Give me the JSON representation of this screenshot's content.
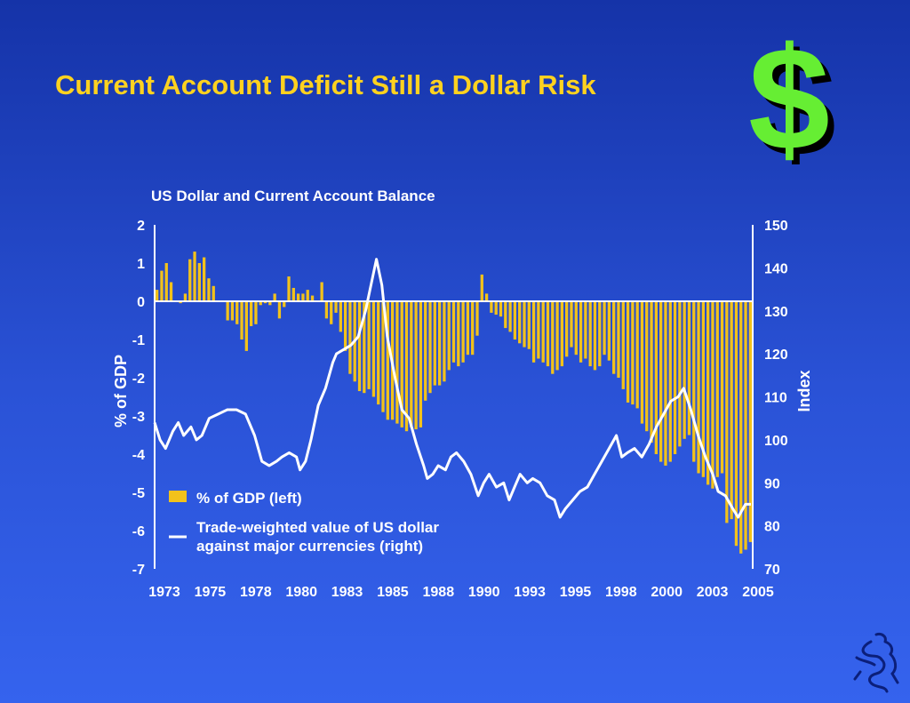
{
  "slide": {
    "title": "Current Account Deficit Still a Dollar Risk"
  },
  "colors": {
    "bars": "#f2c21b",
    "line": "#ffffff",
    "axis": "#ffffff",
    "title": "#ffd21f"
  },
  "chart_data": {
    "type": "bar",
    "title": "US Dollar and Current Account Balance",
    "ylabel": "% of GDP",
    "y2label": "Index",
    "ylim": [
      -7,
      2
    ],
    "y2lim": [
      70,
      150
    ],
    "yticks": [
      "2",
      "1",
      "0",
      "-1",
      "-2",
      "-3",
      "-4",
      "-5",
      "-6",
      "-7"
    ],
    "y2ticks": [
      "150",
      "140",
      "130",
      "120",
      "110",
      "100",
      "90",
      "80",
      "70"
    ],
    "xticks": [
      "1973",
      "1975",
      "1978",
      "1980",
      "1983",
      "1985",
      "1988",
      "1990",
      "1993",
      "1995",
      "1998",
      "2000",
      "2003",
      "2005"
    ],
    "legend": {
      "position": "bottom-left",
      "bar_label": "% of GDP (left)",
      "line_label_1": "Trade-weighted value of US dollar",
      "line_label_2": "against major currencies (right)"
    },
    "bars": {
      "name": "% of GDP (left)",
      "values": [
        0.3,
        0.8,
        1.0,
        0.5,
        0.0,
        -0.05,
        0.2,
        1.1,
        1.3,
        1.0,
        1.15,
        0.6,
        0.4,
        0.0,
        0.0,
        -0.5,
        -0.5,
        -0.6,
        -1.0,
        -1.3,
        -0.65,
        -0.6,
        -0.1,
        -0.05,
        -0.1,
        0.2,
        -0.45,
        -0.15,
        0.65,
        0.35,
        0.2,
        0.2,
        0.3,
        0.15,
        0.0,
        0.5,
        -0.45,
        -0.6,
        -0.3,
        -0.8,
        -1.3,
        -1.9,
        -2.1,
        -2.35,
        -2.4,
        -2.3,
        -2.5,
        -2.7,
        -2.9,
        -3.1,
        -3.1,
        -3.2,
        -3.3,
        -3.4,
        -3.3,
        -3.35,
        -3.3,
        -2.6,
        -2.4,
        -2.2,
        -2.2,
        -2.1,
        -1.8,
        -1.6,
        -1.7,
        -1.6,
        -1.4,
        -1.4,
        -0.9,
        0.7,
        0.2,
        -0.3,
        -0.35,
        -0.4,
        -0.7,
        -0.8,
        -1.0,
        -1.1,
        -1.2,
        -1.25,
        -1.6,
        -1.5,
        -1.6,
        -1.7,
        -1.9,
        -1.8,
        -1.7,
        -1.45,
        -1.2,
        -1.4,
        -1.6,
        -1.5,
        -1.7,
        -1.8,
        -1.7,
        -1.4,
        -1.55,
        -1.9,
        -2.0,
        -2.3,
        -2.65,
        -2.7,
        -2.8,
        -3.2,
        -3.4,
        -3.7,
        -4.0,
        -4.2,
        -4.3,
        -4.2,
        -4.0,
        -3.8,
        -3.6,
        -3.5,
        -4.2,
        -4.5,
        -4.6,
        -4.8,
        -4.9,
        -4.6,
        -4.5,
        -5.8,
        -5.7,
        -6.4,
        -6.6,
        -6.5,
        -6.3
      ]
    },
    "line": {
      "name": "Trade-weighted value of US dollar against major currencies (right)",
      "points": [
        [
          1973.0,
          104
        ],
        [
          1973.3,
          100
        ],
        [
          1973.6,
          98
        ],
        [
          1974.0,
          102
        ],
        [
          1974.3,
          104
        ],
        [
          1974.6,
          101
        ],
        [
          1975.0,
          103
        ],
        [
          1975.3,
          100
        ],
        [
          1975.6,
          101
        ],
        [
          1976.0,
          105
        ],
        [
          1976.5,
          106
        ],
        [
          1977.0,
          107
        ],
        [
          1977.5,
          107
        ],
        [
          1978.0,
          106
        ],
        [
          1978.5,
          101
        ],
        [
          1978.9,
          95
        ],
        [
          1979.3,
          94
        ],
        [
          1979.7,
          95
        ],
        [
          1980.0,
          96
        ],
        [
          1980.4,
          97
        ],
        [
          1980.8,
          96
        ],
        [
          1981.0,
          93
        ],
        [
          1981.3,
          95
        ],
        [
          1981.6,
          100
        ],
        [
          1982.0,
          108
        ],
        [
          1982.4,
          112
        ],
        [
          1982.8,
          118
        ],
        [
          1983.0,
          120
        ],
        [
          1983.4,
          121
        ],
        [
          1983.8,
          122
        ],
        [
          1984.2,
          124
        ],
        [
          1984.6,
          130
        ],
        [
          1985.0,
          138
        ],
        [
          1985.2,
          142
        ],
        [
          1985.5,
          136
        ],
        [
          1985.8,
          124
        ],
        [
          1986.2,
          115
        ],
        [
          1986.6,
          107
        ],
        [
          1987.0,
          105
        ],
        [
          1987.4,
          99
        ],
        [
          1987.8,
          94
        ],
        [
          1988.0,
          91
        ],
        [
          1988.3,
          92
        ],
        [
          1988.6,
          94
        ],
        [
          1989.0,
          93
        ],
        [
          1989.3,
          96
        ],
        [
          1989.6,
          97
        ],
        [
          1990.0,
          95
        ],
        [
          1990.4,
          92
        ],
        [
          1990.8,
          87
        ],
        [
          1991.1,
          90
        ],
        [
          1991.4,
          92
        ],
        [
          1991.8,
          89
        ],
        [
          1992.2,
          90
        ],
        [
          1992.5,
          86
        ],
        [
          1992.8,
          89
        ],
        [
          1993.1,
          92
        ],
        [
          1993.5,
          90
        ],
        [
          1993.8,
          91
        ],
        [
          1994.2,
          90
        ],
        [
          1994.6,
          87
        ],
        [
          1995.0,
          86
        ],
        [
          1995.3,
          82
        ],
        [
          1995.6,
          84
        ],
        [
          1996.0,
          86
        ],
        [
          1996.4,
          88
        ],
        [
          1996.8,
          89
        ],
        [
          1997.2,
          92
        ],
        [
          1997.6,
          95
        ],
        [
          1998.0,
          98
        ],
        [
          1998.4,
          101
        ],
        [
          1998.7,
          96
        ],
        [
          1999.0,
          97
        ],
        [
          1999.4,
          98
        ],
        [
          1999.8,
          96
        ],
        [
          2000.2,
          99
        ],
        [
          2000.6,
          103
        ],
        [
          2001.0,
          106
        ],
        [
          2001.4,
          109
        ],
        [
          2001.8,
          110
        ],
        [
          2002.1,
          112
        ],
        [
          2002.5,
          107
        ],
        [
          2002.9,
          101
        ],
        [
          2003.3,
          96
        ],
        [
          2003.7,
          92
        ],
        [
          2004.0,
          88
        ],
        [
          2004.4,
          87
        ],
        [
          2004.8,
          84
        ],
        [
          2005.1,
          82
        ],
        [
          2005.5,
          85
        ],
        [
          2005.8,
          85
        ]
      ]
    }
  }
}
